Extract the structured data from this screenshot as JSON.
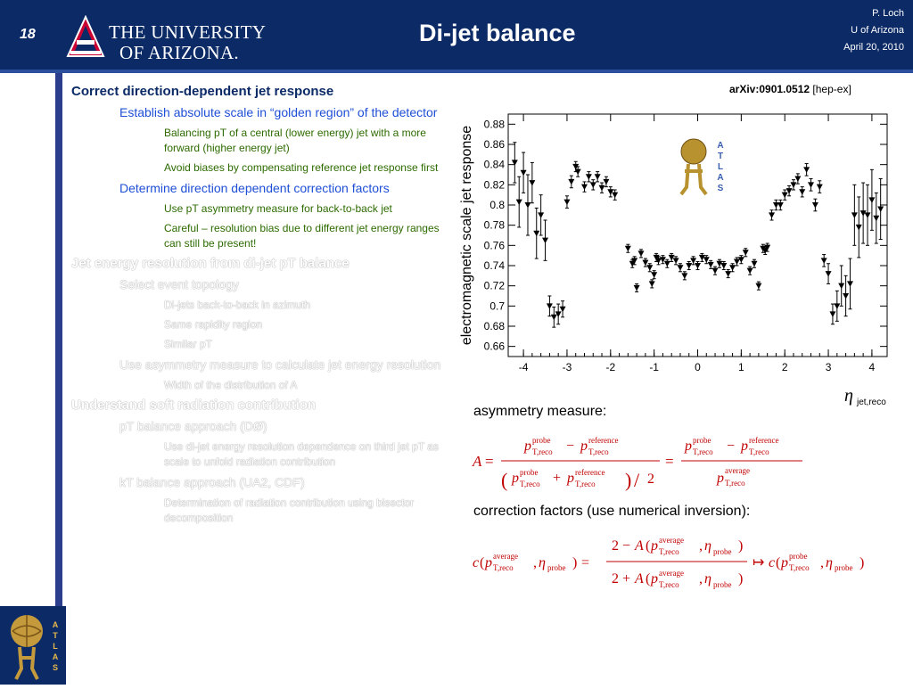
{
  "header": {
    "slide_number": "18",
    "university_line1": "THE UNIVERSITY",
    "university_line2": "OF ARIZONA.",
    "title": "Di-jet balance",
    "author": "P. Loch",
    "affiliation": "U of Arizona",
    "date": "April 20, 2010"
  },
  "bullets": [
    {
      "level": 1,
      "text": "Correct direction-dependent jet response",
      "active": true
    },
    {
      "level": 2,
      "text": "Establish absolute scale in “golden region” of the detector",
      "active": true
    },
    {
      "level": 3,
      "text": "Balancing pT of a central (lower energy) jet with a more forward (higher energy jet)",
      "active": true
    },
    {
      "level": 3,
      "text": "Avoid biases by compensating reference jet response first",
      "active": true
    },
    {
      "level": 2,
      "text": "Determine direction dependent correction factors",
      "active": true
    },
    {
      "level": 3,
      "text": "Use pT asymmetry measure for back-to-back jet",
      "active": true
    },
    {
      "level": 3,
      "text": "Careful – resolution bias due to different jet energy ranges can still be present!",
      "active": true
    },
    {
      "level": 1,
      "text": "Jet energy resolution from di-jet pT balance",
      "active": false
    },
    {
      "level": 2,
      "text": "Select event topology",
      "active": false
    },
    {
      "level": 3,
      "text": "Di-jets back-to-back in azimuth",
      "active": false
    },
    {
      "level": 3,
      "text": "Same rapidity region",
      "active": false
    },
    {
      "level": 3,
      "text": "Similar pT",
      "active": false
    },
    {
      "level": 2,
      "text": "Use asymmetry measure to calculate jet energy resolution",
      "active": false
    },
    {
      "level": 3,
      "text": "Width of the distribution of A",
      "active": false
    },
    {
      "level": 1,
      "text": "Understand soft radiation contribution",
      "active": false
    },
    {
      "level": 2,
      "text": "pT balance approach (DØ)",
      "active": false
    },
    {
      "level": 3,
      "text": "Use di-jet energy resolution dependence on third jet pT as scale to unfold radiation contribution",
      "active": false
    },
    {
      "level": 2,
      "text": "kT balance approach (UA2, CDF)",
      "active": false
    },
    {
      "level": 3,
      "text": "Determination of radiation contribution using bisector decomposition",
      "active": false
    }
  ],
  "reference": {
    "arxiv_id": "arXiv:0901.0512",
    "category": "[hep-ex]"
  },
  "chart_data": {
    "type": "scatter",
    "title": "",
    "xlabel": "η jet,reco",
    "ylabel": "electromagnetic scale jet response",
    "xlim": [
      -4.35,
      4.35
    ],
    "ylim": [
      0.65,
      0.89
    ],
    "x_ticks": [
      "-4",
      "-3",
      "-2",
      "-1",
      "0",
      "1",
      "2",
      "3",
      "4"
    ],
    "y_ticks": [
      "0.66",
      "0.68",
      "0.7",
      "0.72",
      "0.74",
      "0.76",
      "0.78",
      "0.8",
      "0.82",
      "0.84",
      "0.86",
      "0.88"
    ],
    "points": [
      {
        "x": -4.2,
        "y": 0.842,
        "err": 0.02
      },
      {
        "x": -4.1,
        "y": 0.803,
        "err": 0.025
      },
      {
        "x": -4.0,
        "y": 0.832,
        "err": 0.02
      },
      {
        "x": -3.9,
        "y": 0.8,
        "err": 0.03
      },
      {
        "x": -3.8,
        "y": 0.822,
        "err": 0.02
      },
      {
        "x": -3.7,
        "y": 0.772,
        "err": 0.025
      },
      {
        "x": -3.6,
        "y": 0.79,
        "err": 0.02
      },
      {
        "x": -3.5,
        "y": 0.765,
        "err": 0.02
      },
      {
        "x": -3.4,
        "y": 0.7,
        "err": 0.01
      },
      {
        "x": -3.3,
        "y": 0.689,
        "err": 0.01
      },
      {
        "x": -3.2,
        "y": 0.692,
        "err": 0.01
      },
      {
        "x": -3.1,
        "y": 0.697,
        "err": 0.008
      },
      {
        "x": -3.0,
        "y": 0.803,
        "err": 0.006
      },
      {
        "x": -2.9,
        "y": 0.823,
        "err": 0.006
      },
      {
        "x": -2.8,
        "y": 0.838,
        "err": 0.005
      },
      {
        "x": -2.75,
        "y": 0.833,
        "err": 0.005
      },
      {
        "x": -2.6,
        "y": 0.818,
        "err": 0.005
      },
      {
        "x": -2.5,
        "y": 0.828,
        "err": 0.005
      },
      {
        "x": -2.4,
        "y": 0.82,
        "err": 0.005
      },
      {
        "x": -2.3,
        "y": 0.828,
        "err": 0.005
      },
      {
        "x": -2.2,
        "y": 0.817,
        "err": 0.005
      },
      {
        "x": -2.1,
        "y": 0.823,
        "err": 0.005
      },
      {
        "x": -2.0,
        "y": 0.813,
        "err": 0.005
      },
      {
        "x": -1.9,
        "y": 0.81,
        "err": 0.005
      },
      {
        "x": -1.6,
        "y": 0.757,
        "err": 0.004
      },
      {
        "x": -1.5,
        "y": 0.742,
        "err": 0.004
      },
      {
        "x": -1.45,
        "y": 0.745,
        "err": 0.004
      },
      {
        "x": -1.4,
        "y": 0.718,
        "err": 0.004
      },
      {
        "x": -1.3,
        "y": 0.752,
        "err": 0.004
      },
      {
        "x": -1.2,
        "y": 0.743,
        "err": 0.004
      },
      {
        "x": -1.1,
        "y": 0.738,
        "err": 0.004
      },
      {
        "x": -1.05,
        "y": 0.722,
        "err": 0.004
      },
      {
        "x": -1.0,
        "y": 0.731,
        "err": 0.004
      },
      {
        "x": -0.95,
        "y": 0.748,
        "err": 0.004
      },
      {
        "x": -0.9,
        "y": 0.745,
        "err": 0.004
      },
      {
        "x": -0.8,
        "y": 0.746,
        "err": 0.004
      },
      {
        "x": -0.7,
        "y": 0.742,
        "err": 0.004
      },
      {
        "x": -0.6,
        "y": 0.748,
        "err": 0.004
      },
      {
        "x": -0.5,
        "y": 0.745,
        "err": 0.004
      },
      {
        "x": -0.4,
        "y": 0.738,
        "err": 0.004
      },
      {
        "x": -0.3,
        "y": 0.73,
        "err": 0.004
      },
      {
        "x": -0.2,
        "y": 0.74,
        "err": 0.004
      },
      {
        "x": -0.1,
        "y": 0.745,
        "err": 0.004
      },
      {
        "x": 0.0,
        "y": 0.74,
        "err": 0.004
      },
      {
        "x": 0.1,
        "y": 0.748,
        "err": 0.004
      },
      {
        "x": 0.2,
        "y": 0.746,
        "err": 0.004
      },
      {
        "x": 0.3,
        "y": 0.741,
        "err": 0.004
      },
      {
        "x": 0.4,
        "y": 0.735,
        "err": 0.004
      },
      {
        "x": 0.5,
        "y": 0.742,
        "err": 0.004
      },
      {
        "x": 0.6,
        "y": 0.74,
        "err": 0.004
      },
      {
        "x": 0.7,
        "y": 0.732,
        "err": 0.004
      },
      {
        "x": 0.8,
        "y": 0.738,
        "err": 0.004
      },
      {
        "x": 0.9,
        "y": 0.744,
        "err": 0.004
      },
      {
        "x": 1.0,
        "y": 0.746,
        "err": 0.004
      },
      {
        "x": 1.1,
        "y": 0.753,
        "err": 0.004
      },
      {
        "x": 1.2,
        "y": 0.735,
        "err": 0.004
      },
      {
        "x": 1.3,
        "y": 0.742,
        "err": 0.004
      },
      {
        "x": 1.4,
        "y": 0.72,
        "err": 0.004
      },
      {
        "x": 1.5,
        "y": 0.757,
        "err": 0.004
      },
      {
        "x": 1.55,
        "y": 0.755,
        "err": 0.004
      },
      {
        "x": 1.6,
        "y": 0.758,
        "err": 0.004
      },
      {
        "x": 1.7,
        "y": 0.79,
        "err": 0.005
      },
      {
        "x": 1.8,
        "y": 0.8,
        "err": 0.005
      },
      {
        "x": 1.9,
        "y": 0.8,
        "err": 0.005
      },
      {
        "x": 2.0,
        "y": 0.81,
        "err": 0.005
      },
      {
        "x": 2.1,
        "y": 0.814,
        "err": 0.005
      },
      {
        "x": 2.2,
        "y": 0.82,
        "err": 0.005
      },
      {
        "x": 2.3,
        "y": 0.826,
        "err": 0.005
      },
      {
        "x": 2.4,
        "y": 0.813,
        "err": 0.005
      },
      {
        "x": 2.5,
        "y": 0.835,
        "err": 0.006
      },
      {
        "x": 2.6,
        "y": 0.82,
        "err": 0.006
      },
      {
        "x": 2.7,
        "y": 0.8,
        "err": 0.006
      },
      {
        "x": 2.8,
        "y": 0.818,
        "err": 0.006
      },
      {
        "x": 2.9,
        "y": 0.745,
        "err": 0.006
      },
      {
        "x": 3.0,
        "y": 0.732,
        "err": 0.01
      },
      {
        "x": 3.1,
        "y": 0.692,
        "err": 0.01
      },
      {
        "x": 3.2,
        "y": 0.7,
        "err": 0.015
      },
      {
        "x": 3.3,
        "y": 0.72,
        "err": 0.02
      },
      {
        "x": 3.4,
        "y": 0.71,
        "err": 0.02
      },
      {
        "x": 3.5,
        "y": 0.722,
        "err": 0.025
      },
      {
        "x": 3.6,
        "y": 0.79,
        "err": 0.03
      },
      {
        "x": 3.7,
        "y": 0.778,
        "err": 0.03
      },
      {
        "x": 3.8,
        "y": 0.792,
        "err": 0.03
      },
      {
        "x": 3.9,
        "y": 0.79,
        "err": 0.03
      },
      {
        "x": 4.0,
        "y": 0.805,
        "err": 0.03
      },
      {
        "x": 4.1,
        "y": 0.787,
        "err": 0.025
      },
      {
        "x": 4.2,
        "y": 0.796,
        "err": 0.03
      }
    ]
  },
  "asymmetry": {
    "label": "asymmetry measure:"
  },
  "correction": {
    "label": "correction factors (use numerical inversion):"
  },
  "atlas_logo_text": "ATLAS",
  "colors": {
    "header_bg": "#0b2a66",
    "accent_red": "#c00000",
    "active_level3": "#2d6b00",
    "active_level2": "#1f4fd6"
  }
}
